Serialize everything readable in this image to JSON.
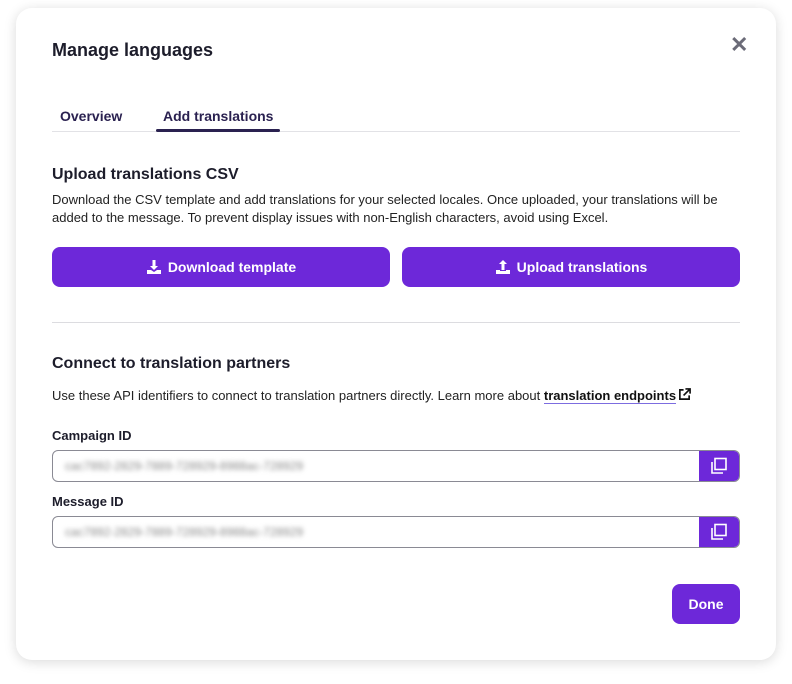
{
  "dialog": {
    "title": "Manage languages",
    "close_icon": "close-icon"
  },
  "tabs": [
    {
      "label": "Overview",
      "active": false
    },
    {
      "label": "Add translations",
      "active": true
    }
  ],
  "upload": {
    "heading": "Upload translations CSV",
    "description": "Download the CSV template and add translations for your selected locales. Once uploaded, your translations will be added to the message. To prevent display issues with non-English characters, avoid using Excel.",
    "download_label": "Download template",
    "upload_label": "Upload translations"
  },
  "partners": {
    "heading": "Connect to translation partners",
    "description": "Use these API identifiers to connect to translation partners directly. Learn more about",
    "link_label": "translation endpoints",
    "campaign_label": "Campaign ID",
    "campaign_value": "cac7892-2829-7889-728929-8988ac-728929",
    "message_label": "Message ID",
    "message_value": "cac7892-2829-7889-728929-8988ac-728929"
  },
  "footer": {
    "done_label": "Done"
  },
  "colors": {
    "accent": "#6d28d9",
    "tab_text": "#2a2150"
  }
}
